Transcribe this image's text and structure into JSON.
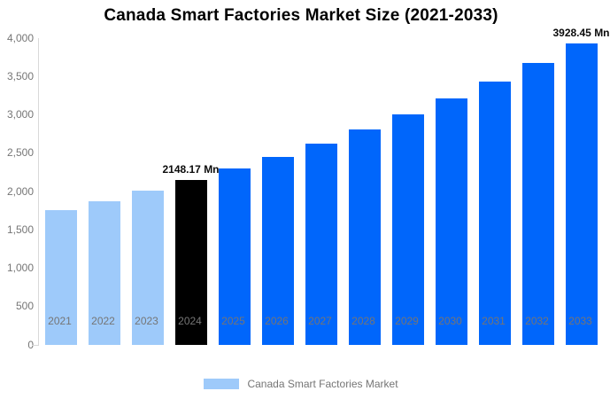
{
  "title": "Canada Smart Factories Market Size (2021-2033)",
  "legend": {
    "label": "Canada Smart Factories Market",
    "swatch_color": "#9ecafa"
  },
  "y_axis": {
    "tick_labels": [
      "4,000",
      "3,500",
      "3,000",
      "2,500",
      "2,000",
      "1,500",
      "1,000",
      "500",
      "0"
    ],
    "max": 4000,
    "min": 0,
    "interval": 500
  },
  "colors": {
    "historical_bar": "#9ecafa",
    "base_year_bar": "#000000",
    "forecast_bar": "#0066fb",
    "axis_line": "#d9d9d9",
    "tick_text": "#757575",
    "title_text": "#000000",
    "data_label_text": "#0b0b0b"
  },
  "chart_data": {
    "type": "bar",
    "title": "Canada Smart Factories Market Size (2021-2033)",
    "categories": [
      "2021",
      "2022",
      "2023",
      "2024",
      "2025",
      "2026",
      "2027",
      "2028",
      "2029",
      "2030",
      "2031",
      "2032",
      "2033"
    ],
    "series": [
      {
        "name": "Canada Smart Factories Market",
        "values": [
          1757,
          1879,
          2009,
          2148.17,
          2297,
          2456,
          2626,
          2809,
          3003,
          3211,
          3434,
          3672,
          3928.45
        ]
      }
    ],
    "xlabel": "",
    "ylabel": "",
    "ylim": [
      0,
      4000
    ],
    "grid": false,
    "legend_position": "bottom",
    "bar_colors": [
      "#9ecafa",
      "#9ecafa",
      "#9ecafa",
      "#000000",
      "#0066fb",
      "#0066fb",
      "#0066fb",
      "#0066fb",
      "#0066fb",
      "#0066fb",
      "#0066fb",
      "#0066fb",
      "#0066fb"
    ],
    "data_labels": [
      {
        "category": "2024",
        "text": "2148.17 Mn"
      },
      {
        "category": "2033",
        "text": "3928.45 Mn"
      }
    ],
    "units": "Mn"
  }
}
